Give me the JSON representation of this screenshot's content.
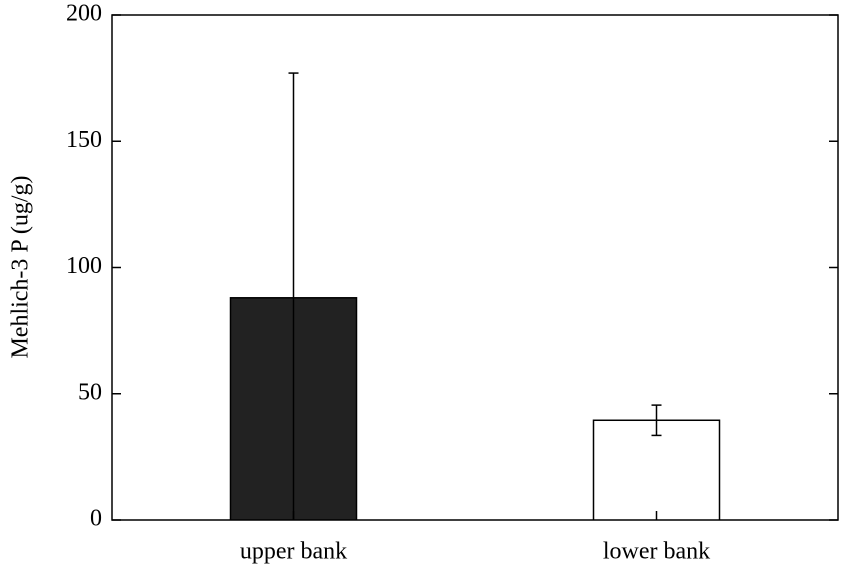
{
  "chart_data": {
    "type": "bar",
    "y_label": "Mehlich-3 P (ug/g)",
    "categories": [
      "upper bank",
      "lower bank"
    ],
    "values": [
      88,
      39.5
    ],
    "errors": [
      89,
      6
    ],
    "colors": [
      "#222222",
      "#ffffff"
    ],
    "ylim": [
      0,
      200
    ],
    "yticks": [
      0,
      50,
      100,
      150,
      200
    ]
  }
}
